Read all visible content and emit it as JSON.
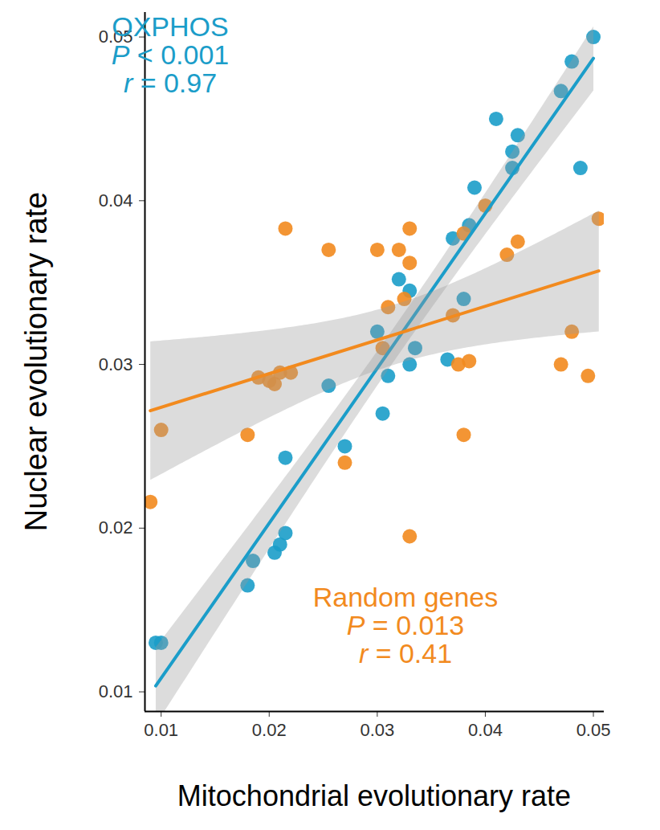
{
  "chart_data": {
    "type": "scatter",
    "x_label": "Mitochondrial evolutionary rate",
    "y_label": "Nuclear evolutionary rate",
    "xlim": [
      0.0085,
      0.051
    ],
    "ylim": [
      0.0088,
      0.0515
    ],
    "xticks": [
      0.01,
      0.02,
      0.03,
      0.04,
      0.05
    ],
    "yticks": [
      0.01,
      0.02,
      0.03,
      0.04,
      0.05
    ],
    "series": [
      {
        "name": "OXPHOS",
        "color": "#1b9dc9",
        "marker": "circle",
        "annotation": [
          "P < 0.001",
          "r = 0.97"
        ],
        "x": [
          0.0095,
          0.01,
          0.018,
          0.0185,
          0.0205,
          0.021,
          0.0215,
          0.0215,
          0.0255,
          0.027,
          0.03,
          0.0305,
          0.031,
          0.032,
          0.033,
          0.033,
          0.0335,
          0.0365,
          0.037,
          0.038,
          0.039,
          0.0385,
          0.041,
          0.0425,
          0.043,
          0.0425,
          0.047,
          0.048,
          0.0488,
          0.05
        ],
        "y": [
          0.013,
          0.013,
          0.0165,
          0.018,
          0.0185,
          0.019,
          0.0197,
          0.0243,
          0.0287,
          0.025,
          0.032,
          0.027,
          0.0293,
          0.0352,
          0.03,
          0.0345,
          0.031,
          0.0303,
          0.0377,
          0.034,
          0.0408,
          0.0385,
          0.045,
          0.043,
          0.044,
          0.042,
          0.0467,
          0.0485,
          0.042,
          0.05
        ]
      },
      {
        "name": "Random genes",
        "color": "#f28a1e",
        "marker": "circle",
        "annotation": [
          "P = 0.013",
          "r = 0.41"
        ],
        "x": [
          0.009,
          0.01,
          0.018,
          0.019,
          0.02,
          0.0205,
          0.021,
          0.022,
          0.0215,
          0.0255,
          0.027,
          0.03,
          0.0305,
          0.031,
          0.032,
          0.0325,
          0.033,
          0.033,
          0.033,
          0.037,
          0.0375,
          0.038,
          0.0385,
          0.038,
          0.04,
          0.042,
          0.043,
          0.047,
          0.048,
          0.0495,
          0.0505
        ],
        "y": [
          0.0216,
          0.026,
          0.0257,
          0.0292,
          0.029,
          0.0288,
          0.0295,
          0.0295,
          0.0383,
          0.037,
          0.024,
          0.037,
          0.031,
          0.0335,
          0.037,
          0.034,
          0.0383,
          0.0362,
          0.0195,
          0.033,
          0.03,
          0.0257,
          0.0302,
          0.038,
          0.0397,
          0.0367,
          0.0375,
          0.03,
          0.032,
          0.0293,
          0.0389
        ]
      }
    ]
  }
}
